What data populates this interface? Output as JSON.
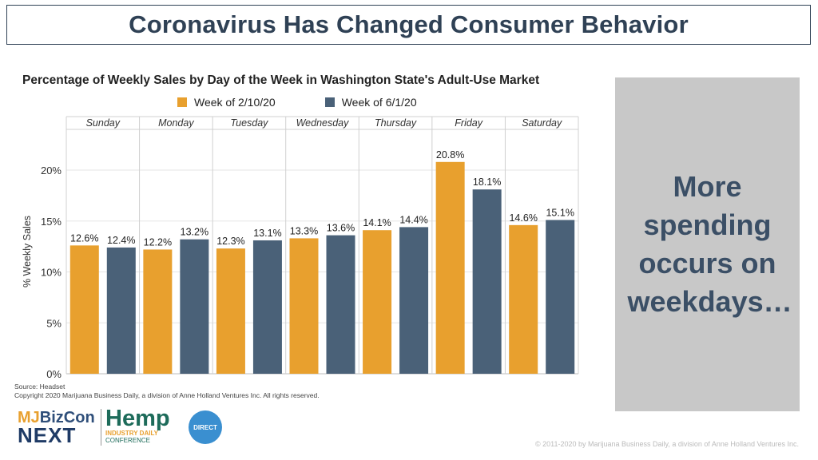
{
  "header": {
    "title": "Coronavirus Has Changed Consumer Behavior"
  },
  "callout": {
    "text": "More spending occurs on weekdays…"
  },
  "chart_data": {
    "type": "bar",
    "title": "Percentage of Weekly Sales by Day of the Week in Washington State's Adult-Use Market",
    "ylabel": "% Weekly Sales",
    "xlabel": "",
    "ylim": [
      0,
      24
    ],
    "yticks": [
      "0%",
      "5%",
      "10%",
      "15%",
      "20%"
    ],
    "yticks_values": [
      0,
      5,
      10,
      15,
      20
    ],
    "grid": true,
    "legend_position": "top",
    "categories": [
      "Sunday",
      "Monday",
      "Tuesday",
      "Wednesday",
      "Thursday",
      "Friday",
      "Saturday"
    ],
    "series": [
      {
        "name": "Week of 2/10/20",
        "color": "#e8a02e",
        "values": [
          12.6,
          12.2,
          12.3,
          13.3,
          14.1,
          20.8,
          14.6
        ],
        "labels": [
          "12.6%",
          "12.2%",
          "12.3%",
          "13.3%",
          "14.1%",
          "20.8%",
          "14.6%"
        ]
      },
      {
        "name": "Week of 6/1/20",
        "color": "#4a6178",
        "values": [
          12.4,
          13.2,
          13.1,
          13.6,
          14.4,
          18.1,
          15.1
        ],
        "labels": [
          "12.4%",
          "13.2%",
          "13.1%",
          "13.6%",
          "14.4%",
          "18.1%",
          "15.1%"
        ]
      }
    ]
  },
  "source": {
    "line1": "Source: Headset",
    "line2": "Copyright 2020 Marijuana Business Daily, a division of Anne Holland Ventures Inc. All rights reserved."
  },
  "footer": {
    "copyright": "© 2011-2020 by Marijuana Business Daily, a division of Anne Holland Ventures Inc."
  },
  "logos": {
    "mj_line1a": "MJ",
    "mj_line1b": "BizCon",
    "mj_line2": "NEXT",
    "hemp_title": "Hemp",
    "hemp_line2": "INDUSTRY DAILY",
    "hemp_line3": "CONFERENCE",
    "direct": "DIRECT"
  }
}
